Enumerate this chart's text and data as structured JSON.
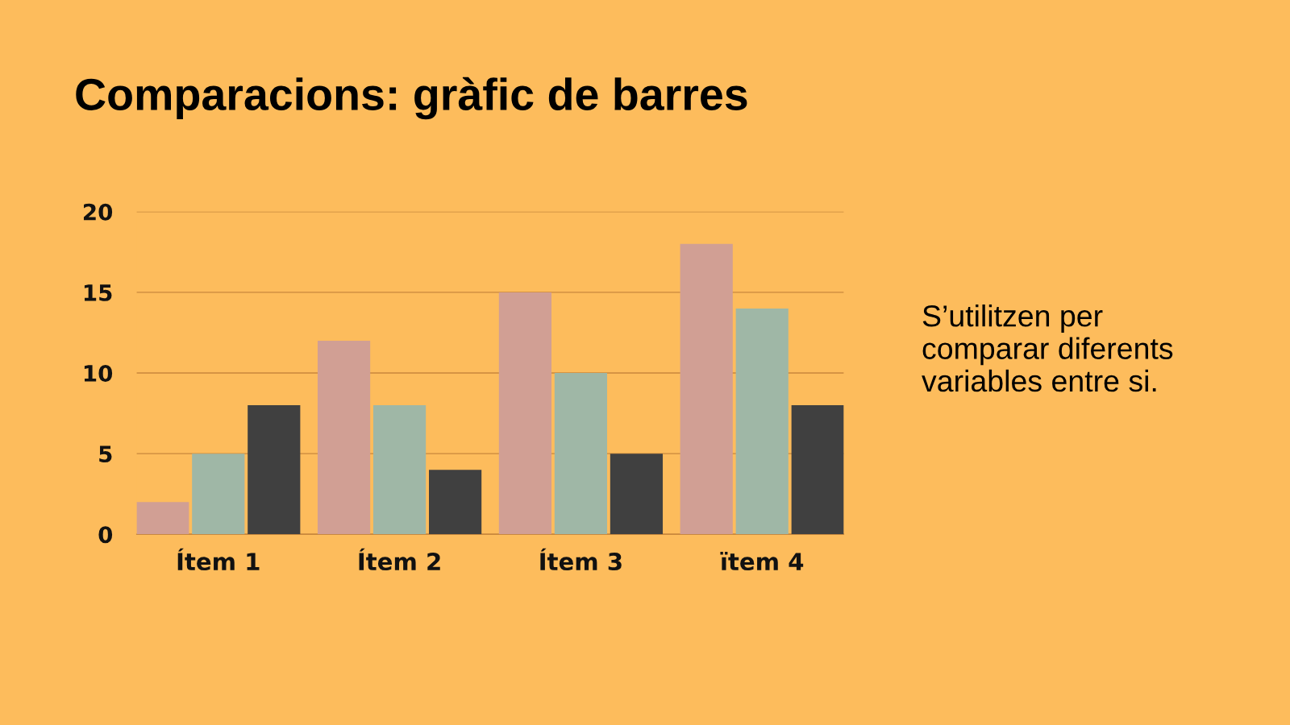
{
  "chart_data": {
    "type": "bar",
    "title": "Comparacions: gràfic de barres",
    "categories": [
      "Ítem 1",
      "Ítem 2",
      "Ítem 3",
      "ïtem 4"
    ],
    "series": [
      {
        "color": "#d19f94",
        "values": [
          2,
          12,
          15,
          18
        ]
      },
      {
        "color": "#9fb7a6",
        "values": [
          5,
          8,
          10,
          14
        ]
      },
      {
        "color": "#404040",
        "values": [
          8,
          4,
          5,
          8
        ]
      }
    ],
    "ylim": [
      0,
      20
    ],
    "yticks": [
      0,
      5,
      10,
      15,
      20
    ],
    "grid": "y",
    "annotations": [
      "S’utilitzen per\ncomparar diferents\nvariables entre si."
    ]
  }
}
